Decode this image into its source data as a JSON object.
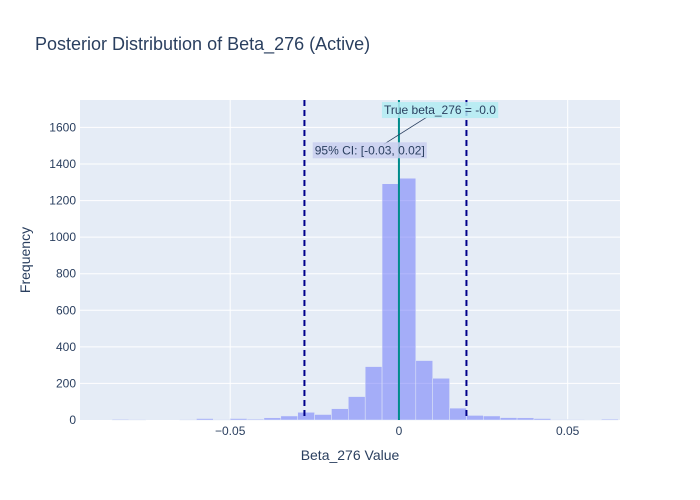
{
  "chart_data": {
    "type": "bar",
    "title": "Posterior Distribution of Beta_276 (Active)",
    "xlabel": "Beta_276 Value",
    "ylabel": "Frequency",
    "xlim": [
      -0.0945,
      0.0655
    ],
    "ylim": [
      0,
      1750
    ],
    "xticks": [
      {
        "value": -0.05,
        "label": "−0.05"
      },
      {
        "value": 0,
        "label": "0"
      },
      {
        "value": 0.05,
        "label": "0.05"
      }
    ],
    "yticks": [
      0,
      200,
      400,
      600,
      800,
      1000,
      1200,
      1400,
      1600
    ],
    "grid": true,
    "bin_width": 0.005,
    "bins": [
      {
        "x0": -0.085,
        "count": 4
      },
      {
        "x0": -0.08,
        "count": 3
      },
      {
        "x0": -0.065,
        "count": 3
      },
      {
        "x0": -0.06,
        "count": 8
      },
      {
        "x0": -0.055,
        "count": 3
      },
      {
        "x0": -0.05,
        "count": 8
      },
      {
        "x0": -0.045,
        "count": 5
      },
      {
        "x0": -0.04,
        "count": 12
      },
      {
        "x0": -0.035,
        "count": 22
      },
      {
        "x0": -0.03,
        "count": 42
      },
      {
        "x0": -0.025,
        "count": 30
      },
      {
        "x0": -0.02,
        "count": 62
      },
      {
        "x0": -0.015,
        "count": 128
      },
      {
        "x0": -0.01,
        "count": 292
      },
      {
        "x0": -0.005,
        "count": 1292
      },
      {
        "x0": 0.0,
        "count": 1322
      },
      {
        "x0": 0.005,
        "count": 325
      },
      {
        "x0": 0.01,
        "count": 228
      },
      {
        "x0": 0.015,
        "count": 65
      },
      {
        "x0": 0.02,
        "count": 25
      },
      {
        "x0": 0.025,
        "count": 22
      },
      {
        "x0": 0.03,
        "count": 13
      },
      {
        "x0": 0.035,
        "count": 12
      },
      {
        "x0": 0.04,
        "count": 8
      },
      {
        "x0": 0.045,
        "count": 3
      },
      {
        "x0": 0.05,
        "count": 3
      },
      {
        "x0": 0.055,
        "count": 2
      },
      {
        "x0": 0.06,
        "count": 5
      }
    ],
    "bar_color": "#636efa",
    "ci_lines": [
      -0.028,
      0.02
    ],
    "ci_color": "#00008b",
    "true_value_line": 0,
    "true_line_color": "#008b8b",
    "annotations": [
      {
        "text": "True beta_276 = -0.0",
        "x": 0,
        "y": 1695,
        "bg": "#b3ecf2"
      },
      {
        "text": "95% CI: [-0.03, 0.02]",
        "x": -0.0045,
        "y": 1475,
        "bg": "#c9cfee"
      }
    ]
  }
}
